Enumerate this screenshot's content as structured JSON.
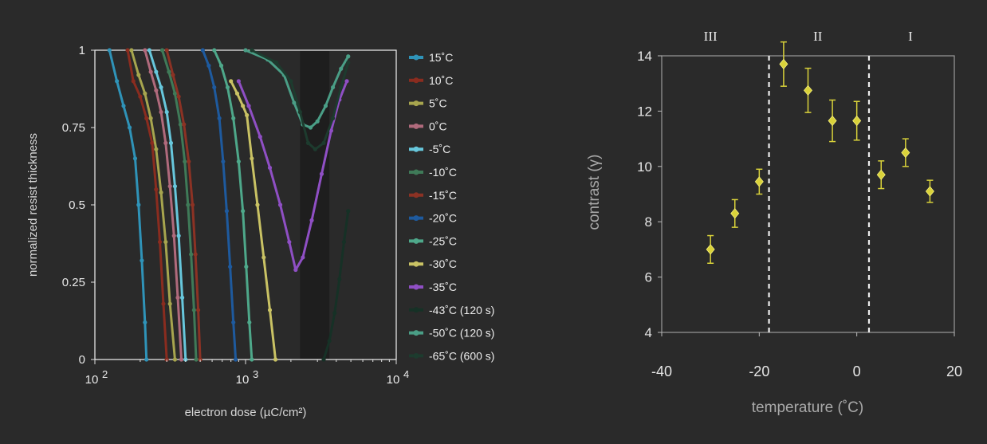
{
  "chart_data": [
    {
      "type": "line",
      "title": "",
      "xlabel": "electron dose (µC/cm²)",
      "ylabel": "normalized resist thickness",
      "xscale": "log",
      "xlim": [
        100,
        10000
      ],
      "ylim": [
        0,
        1
      ],
      "x_ticks": [
        {
          "value": 100,
          "base": "10",
          "exp": "2"
        },
        {
          "value": 1000,
          "base": "10",
          "exp": "3"
        },
        {
          "value": 10000,
          "base": "10",
          "exp": "4"
        }
      ],
      "y_ticks": [
        {
          "value": 0,
          "label": "0"
        },
        {
          "value": 0.25,
          "label": "0.25"
        },
        {
          "value": 0.5,
          "label": "0.5"
        },
        {
          "value": 0.75,
          "label": "0.75"
        },
        {
          "value": 1,
          "label": "1"
        }
      ],
      "legend_position": "right",
      "grid": false,
      "shaded_band": {
        "x": [
          2300,
          3600
        ],
        "color": "#1e1e1e"
      },
      "series": [
        {
          "name": "15˚C",
          "color": "#2f93b8",
          "x": [
            125,
            140,
            155,
            170,
            185,
            195,
            205,
            215,
            220
          ],
          "y": [
            1.0,
            0.9,
            0.82,
            0.75,
            0.65,
            0.5,
            0.32,
            0.12,
            0.0
          ]
        },
        {
          "name": "10˚C",
          "color": "#8a2c1f",
          "x": [
            165,
            180,
            200,
            220,
            240,
            255,
            270,
            285,
            300
          ],
          "y": [
            1.0,
            0.9,
            0.85,
            0.78,
            0.7,
            0.55,
            0.38,
            0.18,
            0.0
          ]
        },
        {
          "name": "5˚C",
          "color": "#a7a54e",
          "x": [
            175,
            195,
            215,
            235,
            255,
            275,
            295,
            315,
            340
          ],
          "y": [
            1.0,
            0.92,
            0.86,
            0.78,
            0.68,
            0.54,
            0.38,
            0.18,
            0.0
          ]
        },
        {
          "name": "0˚C",
          "color": "#b06a7c",
          "x": [
            215,
            235,
            255,
            275,
            295,
            315,
            335,
            355,
            375
          ],
          "y": [
            1.0,
            0.93,
            0.87,
            0.8,
            0.7,
            0.56,
            0.4,
            0.2,
            0.0
          ]
        },
        {
          "name": "-5˚C",
          "color": "#67c7dc",
          "x": [
            230,
            255,
            275,
            300,
            320,
            340,
            360,
            380,
            400
          ],
          "y": [
            1.0,
            0.93,
            0.88,
            0.8,
            0.7,
            0.56,
            0.4,
            0.2,
            0.0
          ]
        },
        {
          "name": "-10˚C",
          "color": "#3f7a58",
          "x": [
            280,
            310,
            340,
            370,
            395,
            415,
            435,
            455,
            470
          ],
          "y": [
            1.0,
            0.93,
            0.86,
            0.76,
            0.64,
            0.5,
            0.34,
            0.16,
            0.0
          ]
        },
        {
          "name": "-15˚C",
          "color": "#8c3224",
          "x": [
            300,
            330,
            360,
            390,
            420,
            445,
            465,
            485,
            500
          ],
          "y": [
            1.0,
            0.92,
            0.85,
            0.76,
            0.64,
            0.5,
            0.34,
            0.16,
            0.0
          ]
        },
        {
          "name": "-20˚C",
          "color": "#1e5a9e",
          "x": [
            520,
            570,
            620,
            670,
            710,
            750,
            790,
            830,
            860
          ],
          "y": [
            1.0,
            0.95,
            0.88,
            0.78,
            0.64,
            0.48,
            0.3,
            0.12,
            0.0
          ]
        },
        {
          "name": "-25˚C",
          "color": "#4ea88a",
          "x": [
            620,
            690,
            760,
            830,
            900,
            960,
            1010,
            1060,
            1100
          ],
          "y": [
            1.0,
            0.95,
            0.88,
            0.78,
            0.64,
            0.48,
            0.3,
            0.12,
            0.0
          ]
        },
        {
          "name": "-30˚C",
          "color": "#c9c264",
          "x": [
            800,
            880,
            960,
            1020,
            1100,
            1200,
            1320,
            1450,
            1580
          ],
          "y": [
            0.9,
            0.86,
            0.82,
            0.79,
            0.65,
            0.5,
            0.33,
            0.16,
            0.0
          ]
        },
        {
          "name": "-35˚C",
          "color": "#8f4fc4",
          "x": [
            900,
            1050,
            1250,
            1450,
            1700,
            1950,
            2150,
            2400,
            2750,
            3200,
            3700,
            4200,
            4700
          ],
          "y": [
            0.9,
            0.82,
            0.72,
            0.62,
            0.5,
            0.38,
            0.29,
            0.33,
            0.45,
            0.6,
            0.74,
            0.84,
            0.9
          ]
        },
        {
          "name": "-43˚C (120 s)",
          "color": "#163126",
          "x": [
            3300,
            3600,
            3900,
            4200,
            4500,
            4800
          ],
          "y": [
            0.0,
            0.06,
            0.15,
            0.26,
            0.38,
            0.48
          ]
        },
        {
          "name": "-50˚C (120 s)",
          "color": "#4a9e86",
          "x": [
            1000,
            1400,
            1800,
            2100,
            2400,
            2700,
            3000,
            3400,
            3800,
            4300,
            4800
          ],
          "y": [
            1.0,
            0.97,
            0.92,
            0.83,
            0.76,
            0.75,
            0.77,
            0.82,
            0.88,
            0.94,
            0.98
          ]
        },
        {
          "name": "-65˚C (600 s)",
          "color": "#1d3b2e",
          "x": [
            1100,
            1600,
            2000,
            2300,
            2600,
            2900,
            3300,
            3800,
            4300,
            4800
          ],
          "y": [
            1.0,
            0.96,
            0.9,
            0.8,
            0.7,
            0.68,
            0.7,
            0.78,
            0.88,
            0.96
          ]
        }
      ]
    },
    {
      "type": "scatter",
      "title": "",
      "xlabel": "temperature (˚C)",
      "ylabel": "contrast (γ)",
      "xlim": [
        -40,
        20
      ],
      "ylim": [
        4,
        14
      ],
      "x_ticks": [
        -40,
        -20,
        0,
        20
      ],
      "y_ticks": [
        4,
        6,
        8,
        10,
        12,
        14
      ],
      "grid": false,
      "color": "#d9d23a",
      "regions": [
        {
          "label": "III",
          "x_center": -30
        },
        {
          "label": "II",
          "x_center": -8
        },
        {
          "label": "I",
          "x_center": 11
        }
      ],
      "dividers": [
        -18,
        2.5
      ],
      "points": [
        {
          "x": -30,
          "y": 7.0,
          "err": 0.5
        },
        {
          "x": -25,
          "y": 8.3,
          "err": 0.5
        },
        {
          "x": -20,
          "y": 9.45,
          "err": 0.45
        },
        {
          "x": -15,
          "y": 13.7,
          "err": 0.8
        },
        {
          "x": -10,
          "y": 12.75,
          "err": 0.8
        },
        {
          "x": -5,
          "y": 11.65,
          "err": 0.75
        },
        {
          "x": 0,
          "y": 11.65,
          "err": 0.7
        },
        {
          "x": 5,
          "y": 9.7,
          "err": 0.5
        },
        {
          "x": 10,
          "y": 10.5,
          "err": 0.5
        },
        {
          "x": 15,
          "y": 9.1,
          "err": 0.4
        }
      ]
    }
  ]
}
